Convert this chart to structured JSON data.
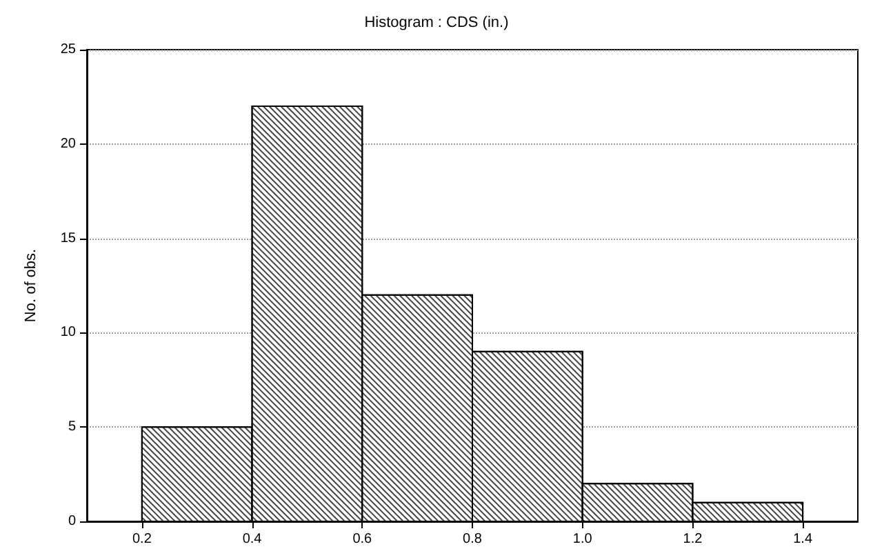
{
  "chart_data": {
    "type": "histogram",
    "title": "Histogram : CDS (in.)",
    "ylabel": "No. of obs.",
    "bins": [
      0.2,
      0.4,
      0.6,
      0.8,
      1.0,
      1.2,
      1.4
    ],
    "values": [
      5,
      22,
      12,
      9,
      2,
      1
    ],
    "color": "#ffffff",
    "xlim": [
      0.1,
      1.5
    ],
    "xticks": [
      0.2,
      0.4,
      0.6,
      0.8,
      {
        "value": 1.0,
        "label": "1.0"
      },
      1.2,
      1.4
    ],
    "ylim": [
      0,
      25
    ],
    "yticks": [
      0,
      5,
      10,
      15,
      20,
      25
    ],
    "grid": "y"
  }
}
